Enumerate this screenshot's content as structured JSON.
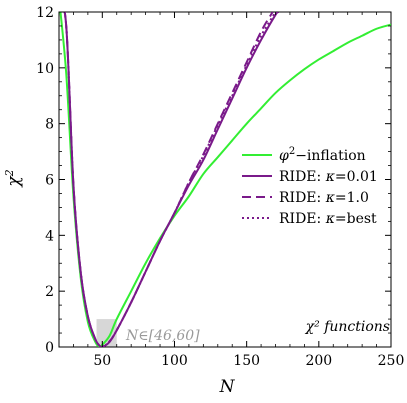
{
  "chart_data": {
    "type": "line",
    "xlabel": "N",
    "ylabel": "χ²",
    "ylabel_base": "χ",
    "ylabel_sup": "2",
    "xlim": [
      20,
      250
    ],
    "ylim": [
      0,
      12
    ],
    "xticks": [
      50,
      100,
      150,
      200,
      250
    ],
    "yticks": [
      0,
      2,
      4,
      6,
      8,
      10,
      12
    ],
    "legend_position": "center-right",
    "series": [
      {
        "name": "φ²−inflation",
        "label_math": "φ",
        "label_sup": "2",
        "label_tail": "−inflation",
        "color": "#33ee33",
        "dash": "solid",
        "x": [
          20,
          25,
          30,
          35,
          40,
          45,
          48,
          50,
          55,
          60,
          70,
          80,
          90,
          100,
          110,
          120,
          130,
          140,
          150,
          160,
          170,
          180,
          190,
          200,
          210,
          220,
          230,
          240,
          250
        ],
        "y": [
          12.5,
          9.8,
          5.4,
          2.5,
          0.9,
          0.2,
          0.0,
          0.08,
          0.4,
          1.0,
          2.0,
          3.0,
          3.9,
          4.7,
          5.4,
          6.2,
          6.8,
          7.4,
          8.0,
          8.55,
          9.1,
          9.55,
          9.95,
          10.3,
          10.6,
          10.9,
          11.15,
          11.4,
          11.55
        ]
      },
      {
        "name": "RIDE: κ=0.01",
        "label_prefix": "RIDE: ",
        "label_kappa": "κ",
        "label_value": "=0.01",
        "color": "#7a1a8a",
        "dash": "solid",
        "x": [
          20,
          25,
          30,
          35,
          40,
          45,
          48,
          50,
          55,
          60,
          70,
          80,
          90,
          100,
          110,
          120,
          130,
          140,
          150,
          160,
          170,
          172
        ],
        "y": [
          12.5,
          11.5,
          5.8,
          2.7,
          1.1,
          0.3,
          0.05,
          0.0,
          0.18,
          0.6,
          1.6,
          2.7,
          3.8,
          4.8,
          5.8,
          6.7,
          7.8,
          8.9,
          10.0,
          11.0,
          11.9,
          12.0
        ]
      },
      {
        "name": "RIDE: κ=1.0",
        "label_prefix": "RIDE: ",
        "label_kappa": "κ",
        "label_value": "=1.0",
        "color": "#7a1a8a",
        "dash": "9,5",
        "x": [
          20,
          25,
          30,
          35,
          40,
          45,
          48,
          50,
          55,
          60,
          70,
          80,
          90,
          100,
          110,
          120,
          130,
          140,
          150,
          160,
          168
        ],
        "y": [
          12.5,
          11.5,
          5.8,
          2.7,
          1.1,
          0.3,
          0.05,
          0.0,
          0.2,
          0.6,
          1.6,
          2.7,
          3.8,
          4.8,
          5.9,
          6.9,
          8.0,
          9.1,
          10.2,
          11.3,
          12.0
        ]
      },
      {
        "name": "RIDE: κ=best",
        "label_prefix": "RIDE: ",
        "label_kappa": "κ",
        "label_value": "=best",
        "color": "#7a1a8a",
        "dash": "2,3",
        "x": [
          20,
          25,
          30,
          35,
          40,
          45,
          48,
          50,
          55,
          60,
          70,
          80,
          90,
          100,
          110,
          120,
          130,
          140,
          150,
          160,
          170
        ],
        "y": [
          12.5,
          11.5,
          5.8,
          2.7,
          1.1,
          0.3,
          0.05,
          0.0,
          0.2,
          0.6,
          1.6,
          2.7,
          3.8,
          4.8,
          5.9,
          6.85,
          7.95,
          9.0,
          10.1,
          11.15,
          12.0
        ]
      }
    ],
    "shaded_region": {
      "x": [
        46,
        60
      ],
      "y": [
        0,
        1
      ],
      "color": "#d0d0d0"
    },
    "annotations": {
      "region_label": "N∈[46,60]",
      "region_label_color": "#999999",
      "functions_label": "χ² functions"
    }
  }
}
